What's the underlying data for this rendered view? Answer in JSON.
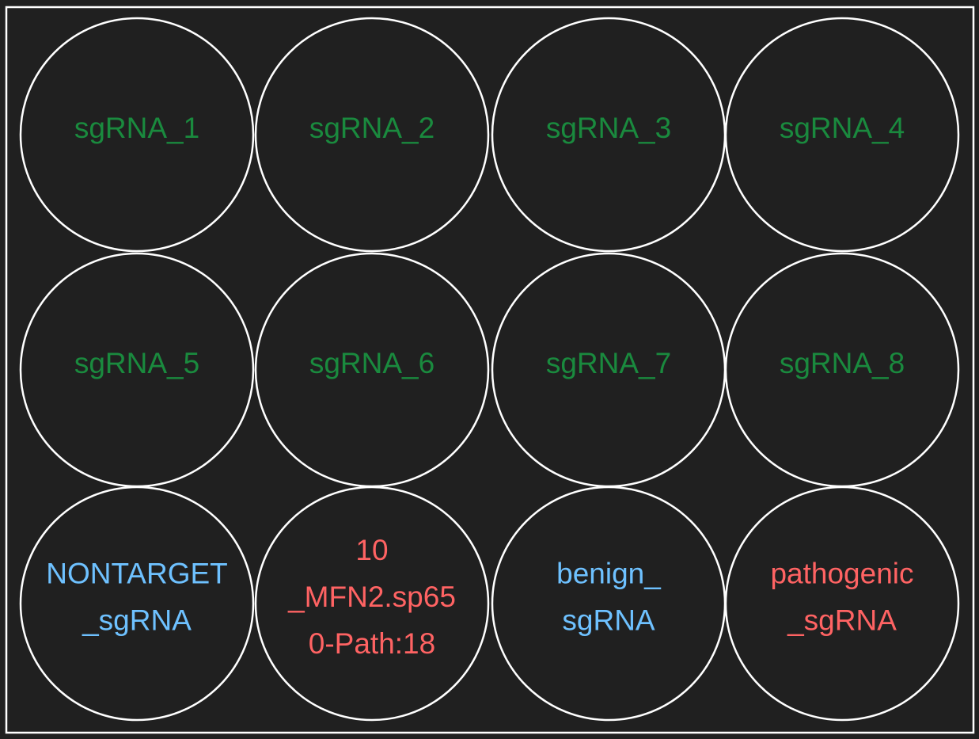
{
  "wells": [
    {
      "lines": [
        "sgRNA_1"
      ],
      "color": "#1a8a3e"
    },
    {
      "lines": [
        "sgRNA_2"
      ],
      "color": "#1a8a3e"
    },
    {
      "lines": [
        "sgRNA_3"
      ],
      "color": "#1a8a3e"
    },
    {
      "lines": [
        "sgRNA_4"
      ],
      "color": "#1a8a3e"
    },
    {
      "lines": [
        "sgRNA_5"
      ],
      "color": "#1a8a3e"
    },
    {
      "lines": [
        "sgRNA_6"
      ],
      "color": "#1a8a3e"
    },
    {
      "lines": [
        "sgRNA_7"
      ],
      "color": "#1a8a3e"
    },
    {
      "lines": [
        "sgRNA_8"
      ],
      "color": "#1a8a3e"
    },
    {
      "lines": [
        "NONTARGET",
        "_sgRNA"
      ],
      "color": "#6ec1ff"
    },
    {
      "lines": [
        "10",
        "_MFN2.sp65",
        "0-Path:18"
      ],
      "color": "#ff6363"
    },
    {
      "lines": [
        "benign_",
        "sgRNA"
      ],
      "color": "#6ec1ff"
    },
    {
      "lines": [
        "pathogenic",
        "_sgRNA"
      ],
      "color": "#ff6363"
    }
  ]
}
